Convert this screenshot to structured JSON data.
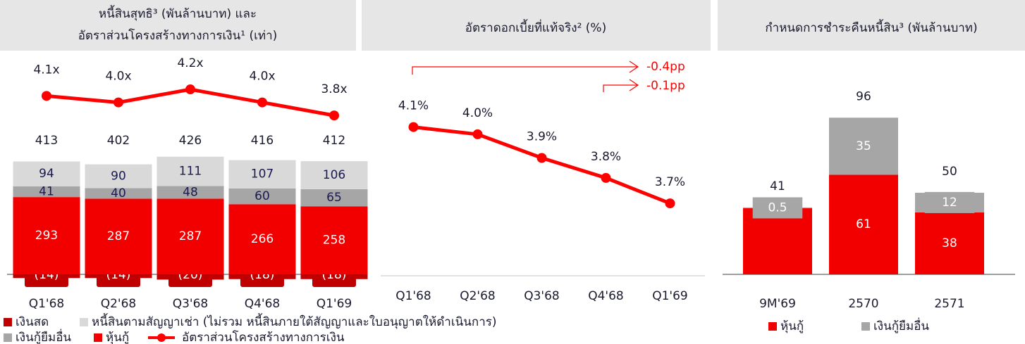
{
  "chart_data": [
    {
      "type": "combo",
      "title": [
        "หนี้สินสุทธิ³ (พันล้านบาท) และ",
        "อัตราส่วนโครงสร้างทางการเงิน¹ (เท่า)"
      ],
      "categories": [
        "Q1'68",
        "Q2'68",
        "Q3'68",
        "Q4'68",
        "Q1'69"
      ],
      "series": [
        {
          "name": "เงินสด",
          "color": "#c00000",
          "values": [
            -14,
            -14,
            -20,
            -18,
            -18
          ],
          "value_labels": [
            "(14)",
            "(14)",
            "(20)",
            "(18)",
            "(18)"
          ]
        },
        {
          "name": "หุ้นกู้",
          "color": "#f20000",
          "values": [
            293,
            287,
            287,
            266,
            258
          ]
        },
        {
          "name": "เงินกู้ยืมอื่น",
          "color": "#a6a6a6",
          "values": [
            41,
            40,
            48,
            60,
            65
          ]
        },
        {
          "name": "หนี้สินตามสัญญาเช่า (ไม่รวม หนี้สินภายใต้สัญญาและใบอนุญาตให้ดำเนินการ)",
          "color": "#d9d9d9",
          "values": [
            94,
            90,
            111,
            107,
            106
          ]
        },
        {
          "name": "อัตราส่วนโครงสร้างทางการเงิน",
          "color": "#ff0000",
          "axis": "y2",
          "values": [
            4.1,
            4.0,
            4.2,
            4.0,
            3.8
          ],
          "value_labels": [
            "4.1x",
            "4.0x",
            "4.2x",
            "4.0x",
            "3.8x"
          ]
        }
      ],
      "totals": [
        413,
        402,
        426,
        416,
        412
      ],
      "ylim": [
        -40,
        800
      ],
      "y2lim": [
        1.2,
        4.6
      ]
    },
    {
      "type": "line",
      "title": "อัตราดอกเบี้ยที่แท้จริง² (%)",
      "categories": [
        "Q1'68",
        "Q2'68",
        "Q3'68",
        "Q4'68",
        "Q1'69"
      ],
      "values": [
        4.08,
        4.04,
        3.91,
        3.8,
        3.66
      ],
      "value_labels": [
        "4.1%",
        "4.0%",
        "3.9%",
        "3.8%",
        "3.7%"
      ],
      "color": "#ff0000",
      "annotations": [
        "-0.4pp",
        "-0.1pp"
      ],
      "ylim": [
        3.25,
        4.45
      ]
    },
    {
      "type": "bar",
      "title": "กำหนดการชำระคืนหนี้สิน³ (พันล้านบาท)",
      "categories": [
        "9M'69",
        "2570",
        "2571"
      ],
      "series": [
        {
          "name": "หุ้นกู้",
          "color": "#f20000",
          "values": [
            40.5,
            61,
            38
          ],
          "value_labels": [
            null,
            "61",
            "38"
          ]
        },
        {
          "name": "เงินกู้ยืมอื่น",
          "color": "#a6a6a6",
          "values": [
            0.5,
            35,
            12
          ]
        }
      ],
      "totals": [
        41,
        96,
        50
      ],
      "ylim": [
        0,
        125
      ]
    }
  ]
}
